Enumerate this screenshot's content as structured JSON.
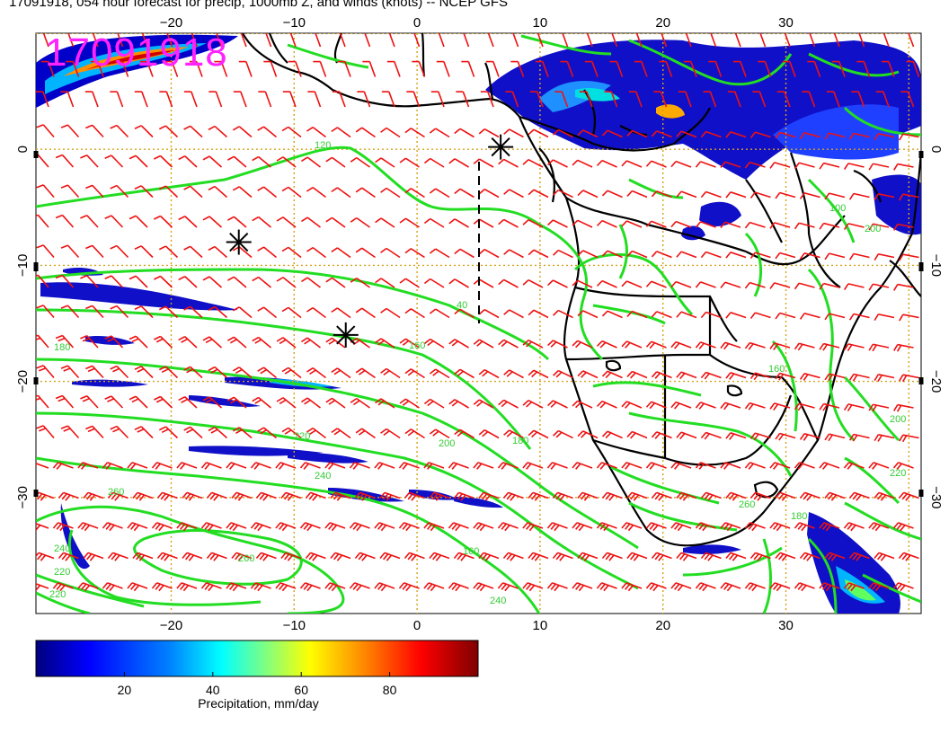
{
  "title": "17091918, 054 hour forecast for precip, 1000mb Z, and winds (knots) -- NCEP GFS",
  "timestamp_stamp": "17091918",
  "map": {
    "lon_ticks_top": [
      "−20",
      "−10",
      "0",
      "10",
      "20",
      "30"
    ],
    "lon_ticks_bottom": [
      "−20",
      "−10",
      "0",
      "10",
      "20",
      "30"
    ],
    "lat_ticks_left": [
      "0",
      "−10",
      "−20",
      "−30"
    ],
    "lat_ticks_right": [
      "0",
      "−10",
      "−20",
      "−30"
    ],
    "lon_range": [
      -31,
      41
    ],
    "lat_range": [
      10,
      -40
    ],
    "contour_labels": [
      "120",
      "180",
      "40",
      "160",
      "180",
      "200",
      "220",
      "240",
      "260",
      "260",
      "240",
      "220",
      "220",
      "160",
      "240",
      "260",
      "180",
      "200",
      "220",
      "200",
      "160",
      "100"
    ],
    "markers": [
      {
        "name": "star-marker",
        "lon": -14.5,
        "lat": -8
      },
      {
        "name": "star-marker",
        "lon": -5.8,
        "lat": -16
      },
      {
        "name": "star-marker",
        "lon": 6.8,
        "lat": 0.2
      }
    ],
    "colors": {
      "contour": "#22dd22",
      "barb": "#ee1111",
      "coast": "#000000",
      "grid": "#d6a21a",
      "stamp": "#ff22ff"
    }
  },
  "colorbar": {
    "ticks": [
      "20",
      "40",
      "60",
      "80"
    ],
    "label": "Precipitation, mm/day",
    "range": [
      0,
      100
    ],
    "colors": [
      "#00007f",
      "#0000ff",
      "#0080ff",
      "#00ffff",
      "#80ff80",
      "#ffff00",
      "#ff8000",
      "#ff0000",
      "#7f0000"
    ]
  }
}
